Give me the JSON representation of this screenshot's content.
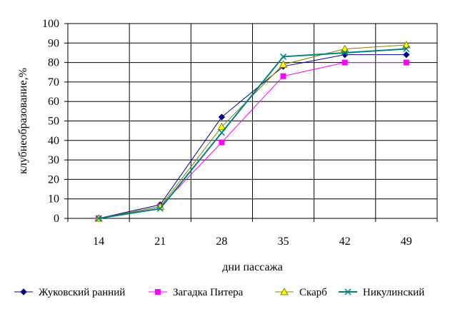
{
  "chart_data": {
    "type": "line",
    "xlabel": "дни пассажа",
    "ylabel": "клубнеобразование,%",
    "categories": [
      "14",
      "21",
      "28",
      "35",
      "42",
      "49"
    ],
    "ylim": [
      0,
      100
    ],
    "yticks": [
      0,
      10,
      20,
      30,
      40,
      50,
      60,
      70,
      80,
      90,
      100
    ],
    "grid": true,
    "legend_position": "bottom",
    "series": [
      {
        "name": "Жуковский ранний",
        "values": [
          0,
          7,
          52,
          78,
          84,
          84
        ],
        "color": "#000080",
        "marker": "diamond"
      },
      {
        "name": "Загадка Питера",
        "values": [
          0,
          6,
          39,
          73,
          80,
          80
        ],
        "color": "#ff00ff",
        "marker": "square"
      },
      {
        "name": "Скарб",
        "values": [
          0,
          6,
          47,
          79,
          87,
          89
        ],
        "color": "#808000",
        "marker": "triangle"
      },
      {
        "name": "Никулинский",
        "values": [
          0,
          5,
          44,
          83,
          85,
          87
        ],
        "color": "#008080",
        "marker": "x"
      }
    ]
  }
}
